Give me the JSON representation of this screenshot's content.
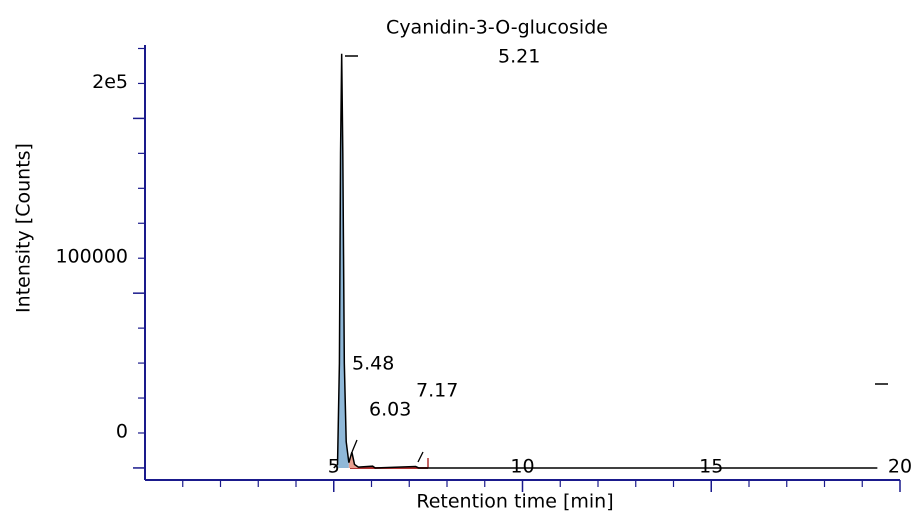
{
  "chart_data": {
    "type": "line",
    "title": "Cyanidin-3-O-glucoside",
    "x_label": "Retention time [min]",
    "y_label": "Intensity [Counts]",
    "xlim": [
      0,
      20
    ],
    "xticks": [
      5,
      10,
      15,
      20
    ],
    "xminorticks": [
      1,
      2,
      3,
      4,
      6,
      7,
      8,
      9,
      11,
      12,
      13,
      14,
      16,
      17,
      18,
      19
    ],
    "ylim": [
      -6900,
      242000
    ],
    "yticks": [
      0,
      100000,
      {
        "value": 200000,
        "label": "2e5"
      }
    ],
    "yminorticks": [
      -20000,
      20000,
      40000,
      60000,
      80000,
      120000,
      140000,
      160000,
      180000,
      220000,
      240000
    ],
    "peak_labels": [
      "5.21",
      "5.48",
      "6.03",
      "7.17"
    ],
    "series": [
      {
        "color": "#000000",
        "x": [
          5.0,
          5.1,
          5.15,
          5.18,
          5.21,
          5.24,
          5.28,
          5.33,
          5.4,
          5.48,
          5.55,
          5.65,
          6.03,
          6.1,
          7.17,
          7.25,
          10,
          15,
          19.4
        ],
        "values": [
          0,
          2000,
          60000,
          180000,
          237000,
          180000,
          60000,
          15000,
          3000,
          9000,
          2000,
          500,
          1000,
          0,
          800,
          0,
          0,
          0,
          0
        ]
      }
    ],
    "axis_color": "#1a1a8c",
    "peak_fill_colors": [
      "#8fb8d8",
      "#e8a090"
    ]
  }
}
